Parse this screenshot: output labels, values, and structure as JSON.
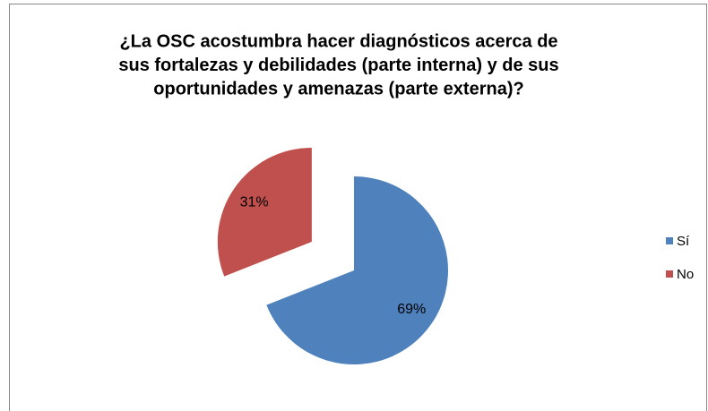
{
  "chart_data": {
    "type": "pie",
    "title": [
      "¿La OSC acostumbra hacer diagnósticos acerca de",
      "sus fortalezas y debilidades (parte interna) y de sus",
      "oportunidades y amenazas (parte externa)?"
    ],
    "categories": [
      "Sí",
      "No"
    ],
    "values": [
      69,
      31
    ],
    "value_labels": [
      "69%",
      "31%"
    ],
    "colors": [
      "#4f81bd",
      "#c0504d"
    ],
    "explode": [
      false,
      true
    ],
    "legend": "right"
  }
}
